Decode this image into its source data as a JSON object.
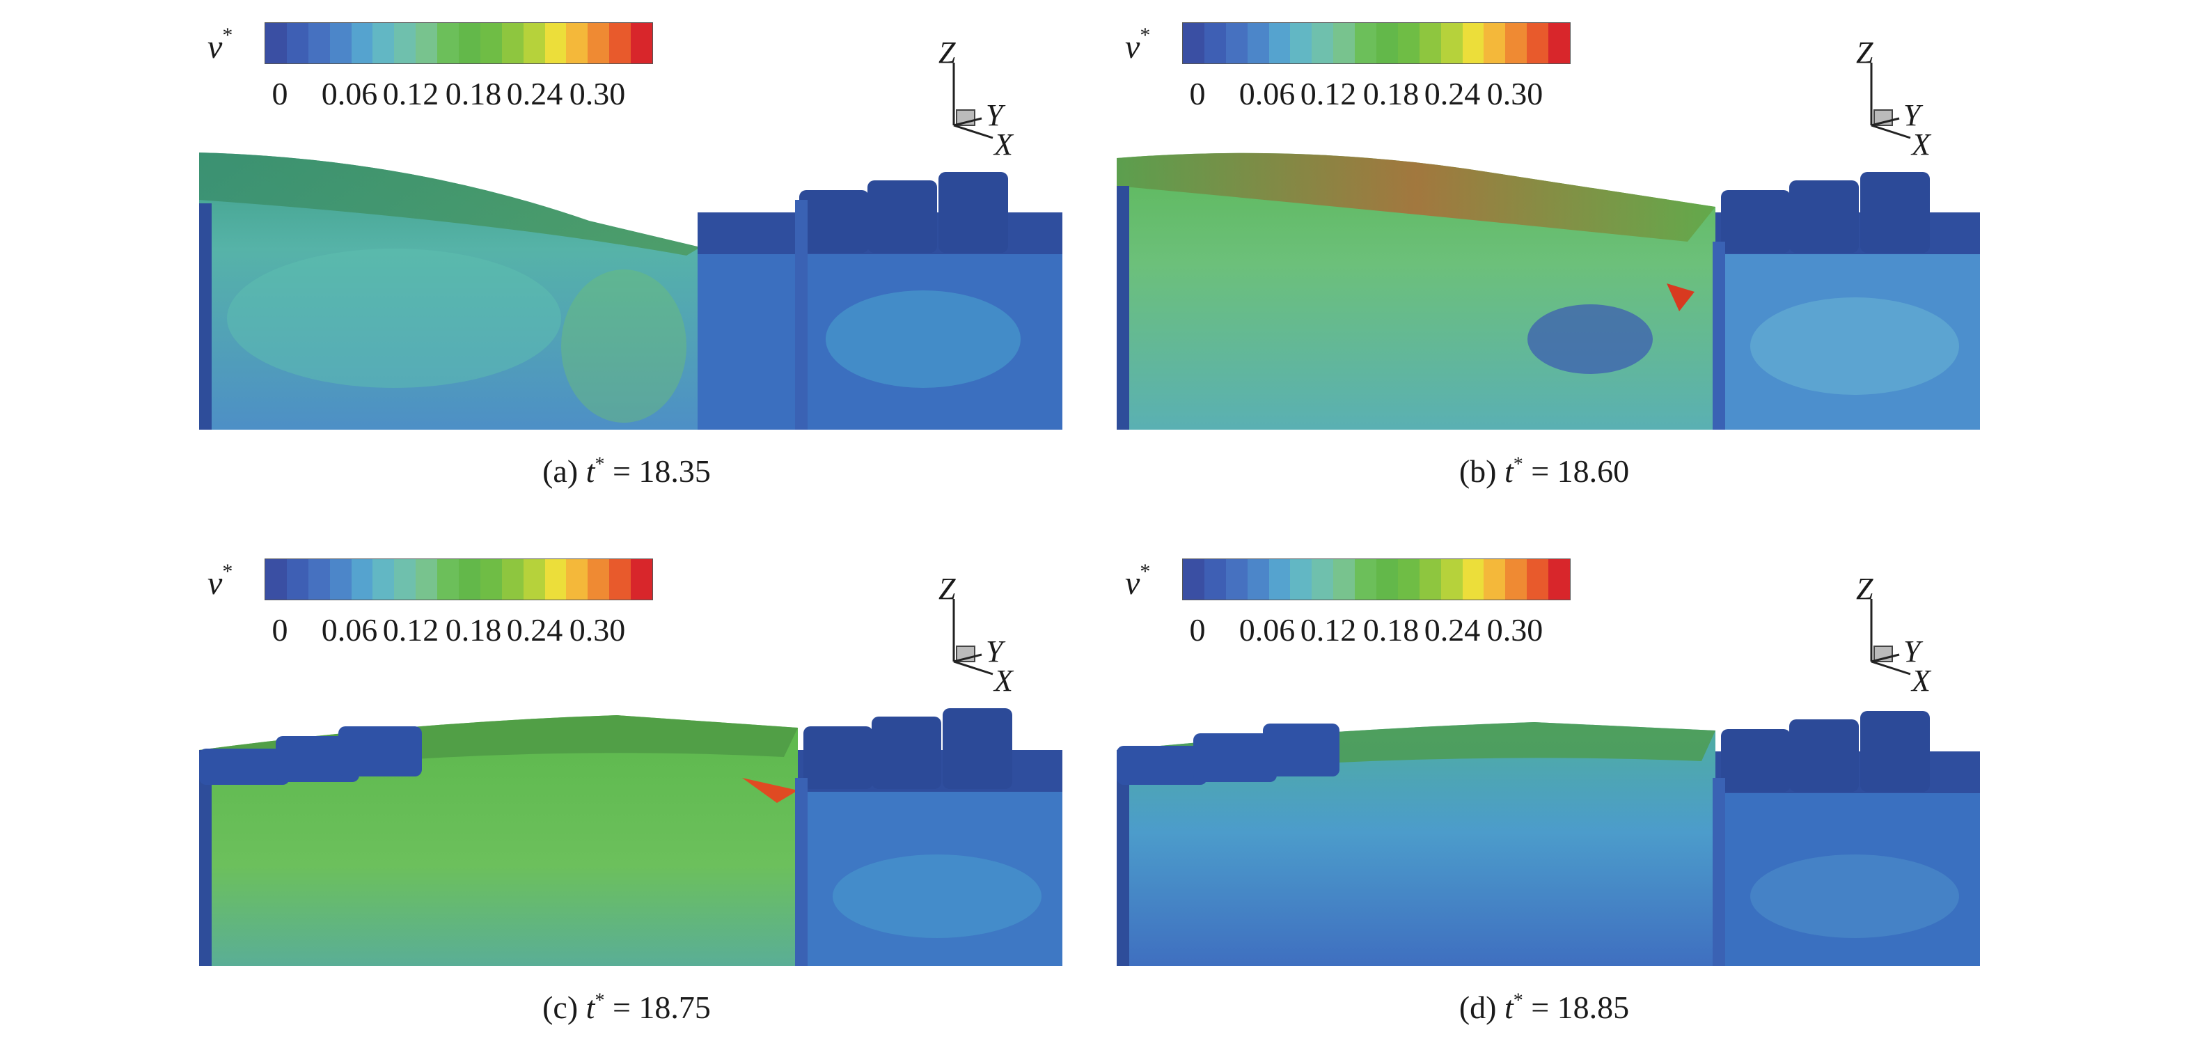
{
  "colorbar": {
    "label": "v",
    "label_sup": "*",
    "ticks": [
      "0",
      "0.06",
      "0.12",
      "0.18",
      "0.24",
      "0.30"
    ],
    "colors": [
      "#3a4fa3",
      "#3e5fb4",
      "#4671c0",
      "#4c86c9",
      "#55a3cf",
      "#62b7c4",
      "#6fc0ad",
      "#78c38e",
      "#6cbf5a",
      "#63b84a",
      "#6fbd45",
      "#8ec63f",
      "#b6d23b",
      "#ecde3a",
      "#f4b83a",
      "#ef8a33",
      "#e85a2c",
      "#d8262b"
    ]
  },
  "axes": {
    "z": "Z",
    "y": "Y",
    "x": "X"
  },
  "panels": [
    {
      "id": "a",
      "caption_prefix": "(a) ",
      "caption_var": "t",
      "caption_sup": "*",
      "caption_value": " = 18.35"
    },
    {
      "id": "b",
      "caption_prefix": "(b) ",
      "caption_var": "t",
      "caption_sup": "*",
      "caption_value": " = 18.60"
    },
    {
      "id": "c",
      "caption_prefix": "(c) ",
      "caption_var": "t",
      "caption_sup": "*",
      "caption_value": " = 18.75"
    },
    {
      "id": "d",
      "caption_prefix": "(d) ",
      "caption_var": "t",
      "caption_sup": "*",
      "caption_value": " = 18.85"
    }
  ]
}
